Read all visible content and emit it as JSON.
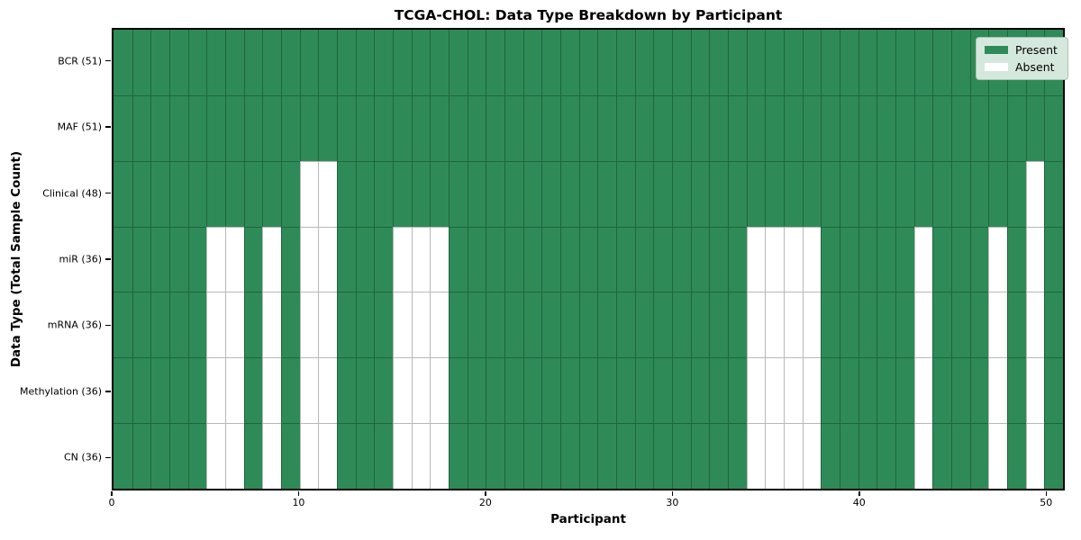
{
  "chart_data": {
    "type": "heatmap",
    "title": "TCGA-CHOL: Data Type Breakdown by Participant",
    "xlabel": "Participant",
    "ylabel": "Data Type (Total Sample Count)",
    "participants": 51,
    "x_range": [
      0,
      51
    ],
    "x_ticks": [
      0,
      10,
      20,
      30,
      40,
      50
    ],
    "grid": true,
    "legend_position": "upper right",
    "rows": [
      {
        "label": "BCR (51)",
        "data_type": "BCR",
        "present_count": 51,
        "absent_participants": []
      },
      {
        "label": "MAF (51)",
        "data_type": "MAF",
        "present_count": 51,
        "absent_participants": []
      },
      {
        "label": "Clinical (48)",
        "data_type": "Clinical",
        "present_count": 48,
        "absent_participants": [
          10,
          11,
          49
        ]
      },
      {
        "label": "miR (36)",
        "data_type": "miR",
        "present_count": 36,
        "absent_participants": [
          5,
          6,
          8,
          10,
          11,
          15,
          16,
          17,
          34,
          35,
          36,
          37,
          43,
          47,
          49
        ]
      },
      {
        "label": "mRNA (36)",
        "data_type": "mRNA",
        "present_count": 36,
        "absent_participants": [
          5,
          6,
          8,
          10,
          11,
          15,
          16,
          17,
          34,
          35,
          36,
          37,
          43,
          47,
          49
        ]
      },
      {
        "label": "Methylation (36)",
        "data_type": "Methylation",
        "present_count": 36,
        "absent_participants": [
          5,
          6,
          8,
          10,
          11,
          15,
          16,
          17,
          34,
          35,
          36,
          37,
          43,
          47,
          49
        ]
      },
      {
        "label": "CN (36)",
        "data_type": "CN",
        "present_count": 36,
        "absent_participants": [
          5,
          6,
          8,
          10,
          11,
          15,
          16,
          17,
          34,
          35,
          36,
          37,
          43,
          47,
          49
        ]
      }
    ],
    "legend": [
      {
        "label": "Present",
        "color": "#2e8b57"
      },
      {
        "label": "Absent",
        "color": "#ffffff"
      }
    ],
    "colors": {
      "present": "#2e8b57",
      "absent": "#ffffff",
      "grid": "rgba(0,0,0,0.28)",
      "plot_border": "#000000",
      "legend_bg": "#d5e8dd",
      "legend_border": "#acbfb4",
      "text": "#000000"
    }
  }
}
